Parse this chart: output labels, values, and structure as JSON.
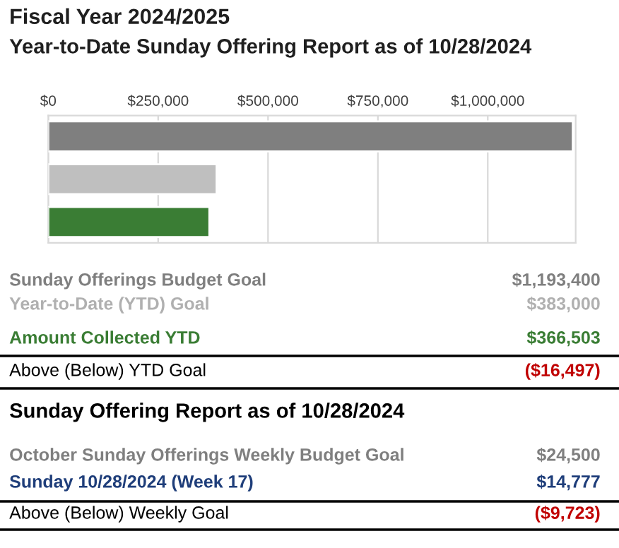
{
  "chart_data": {
    "type": "bar",
    "orientation": "horizontal",
    "title": "Fiscal Year 2024/2025",
    "subtitle": "Year-to-Date Sunday Offering Report as of 10/28/2024",
    "categories": [
      null,
      null,
      null
    ],
    "values": [
      1193400,
      383000,
      366503
    ],
    "colors": [
      "#7f7f7f",
      "#bfbfbf",
      "#3a7d34"
    ],
    "xlim": [
      0,
      1200000
    ],
    "xticks": [
      {
        "value": 0,
        "label": "$0"
      },
      {
        "value": 250000,
        "label": "$250,000"
      },
      {
        "value": 500000,
        "label": "$500,000"
      },
      {
        "value": 750000,
        "label": "$750,000"
      },
      {
        "value": 1000000,
        "label": "$1,000,000"
      }
    ],
    "grid": "x",
    "annotations": [
      "Sunday Offerings Budget Goal",
      "$1,193,400",
      "Year-to-Date (YTD) Goal",
      "$383,000",
      "Amount Collected YTD",
      "$366,503",
      "Above (Below) YTD Goal",
      "($16,497)",
      "Sunday Offering Report as of 10/28/2024",
      "October Sunday Offerings Weekly Budget Goal",
      "$24,500",
      "Sunday 10/28/2024 (Week 17)",
      "$14,777",
      "Above (Below) Weekly Goal",
      "($9,723)"
    ]
  }
}
